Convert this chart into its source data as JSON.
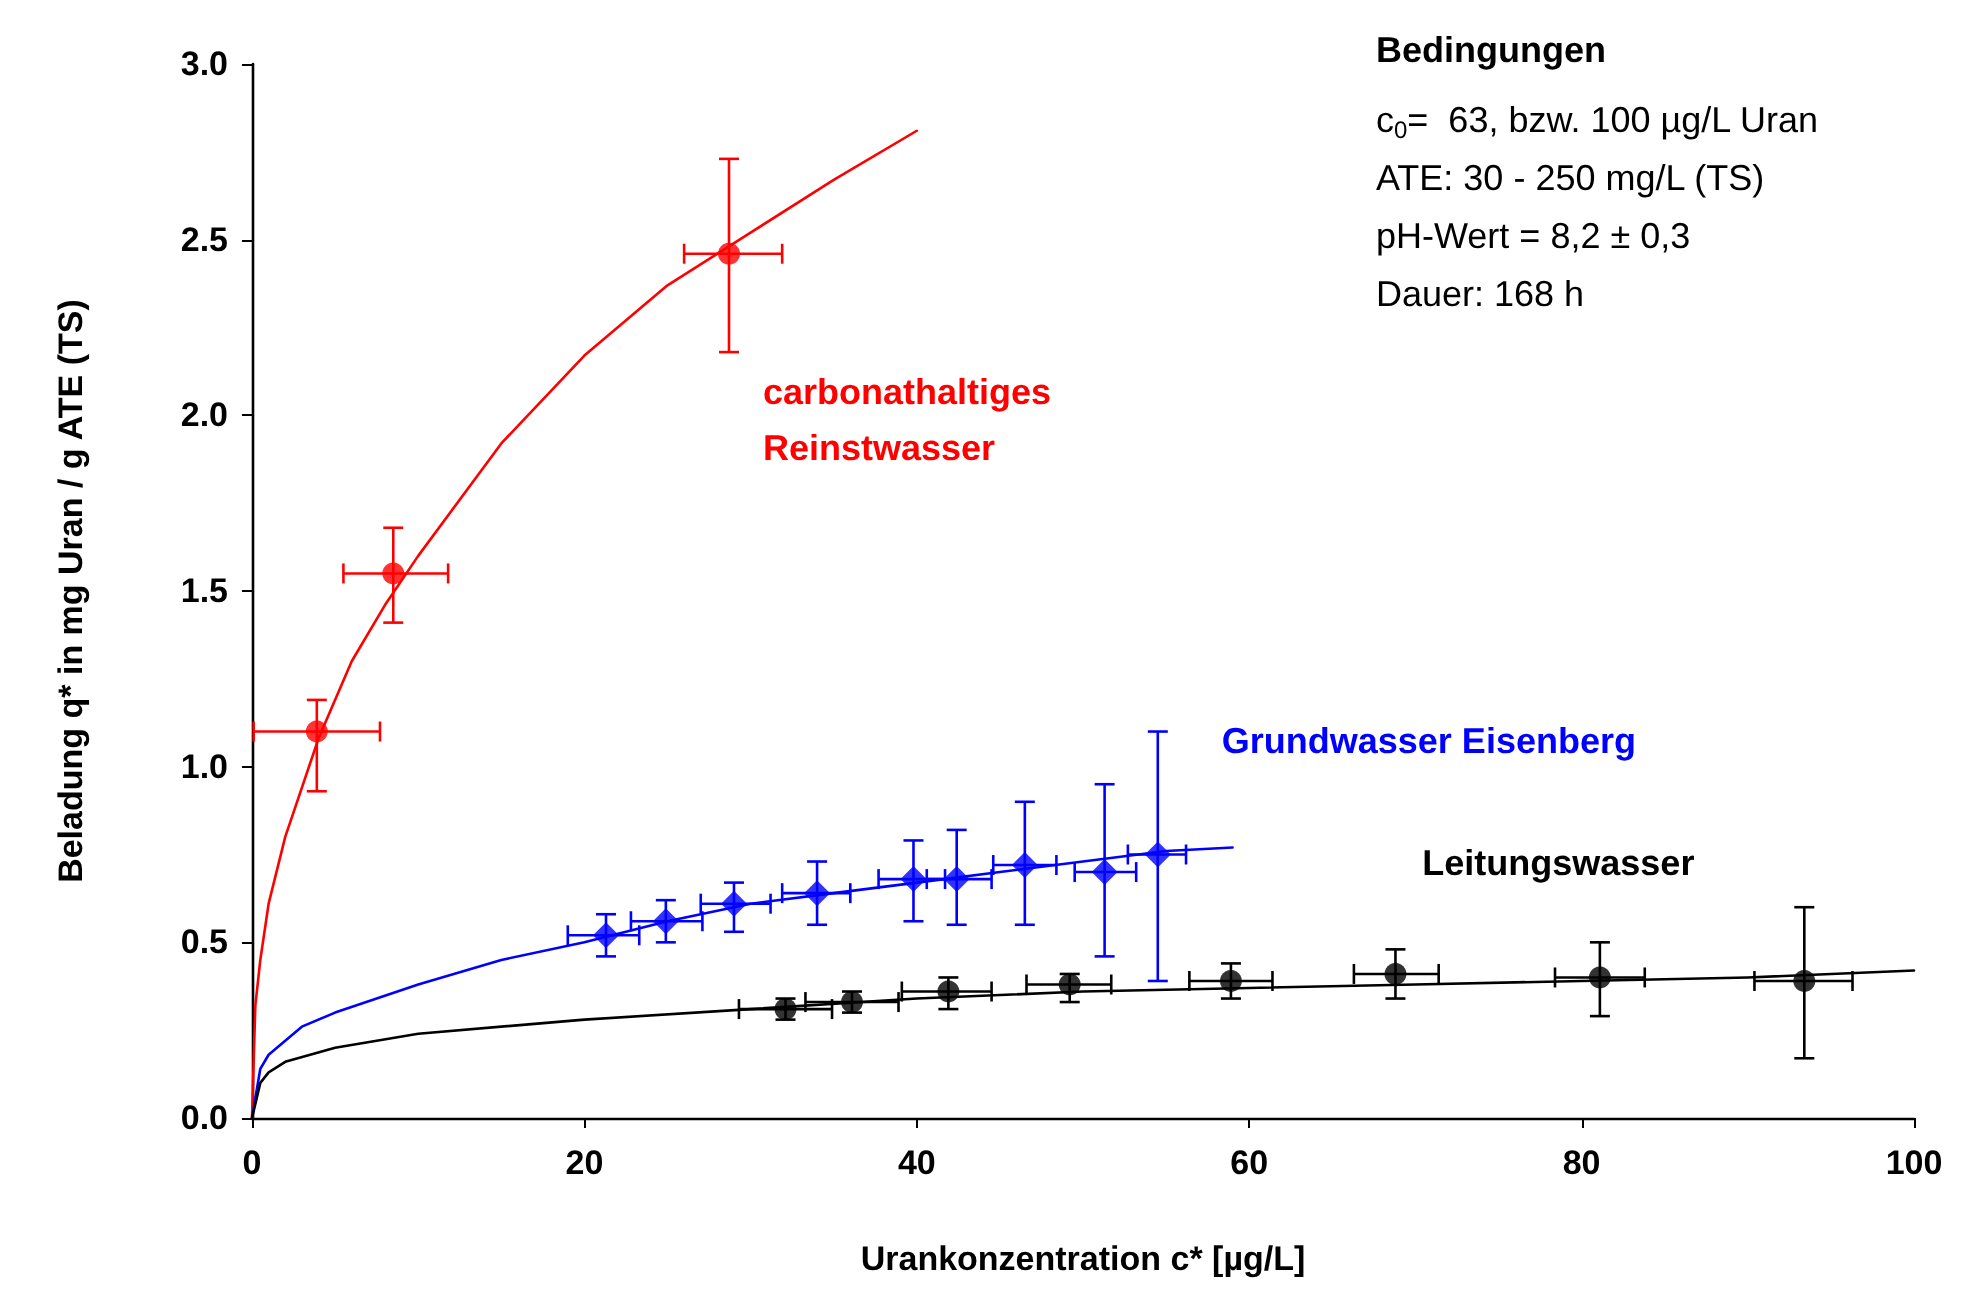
{
  "chart_data": {
    "type": "scatter",
    "xlabel": "Urankonzentration c* [µg/L]",
    "ylabel": "Beladung q* in mg Uran / g ATE (TS)",
    "xlim": [
      0,
      100
    ],
    "xticks": [
      0,
      20,
      40,
      60,
      80,
      100
    ],
    "ylim": [
      0,
      3
    ],
    "yticks": [
      {
        "value": 0,
        "label": "0.0"
      },
      {
        "value": 0.5,
        "label": "0.5"
      },
      {
        "value": 1,
        "label": "1.0"
      },
      {
        "value": 1.5,
        "label": "1.5"
      },
      {
        "value": 2,
        "label": "2.0"
      },
      {
        "value": 2.5,
        "label": "2.5"
      },
      {
        "value": 3,
        "label": "3.0"
      }
    ],
    "grid": false,
    "legend": false,
    "annotations": [
      "Bedingungen",
      "c$_{0}$=  63, bzw. 100 µg/L Uran",
      "ATE: 30 - 250 mg/L (TS)",
      "pH-Wert = 8,2 ± 0,3",
      "Dauer: 168 h"
    ],
    "series": [
      {
        "type": "line",
        "color": "#ff0000",
        "marker": "none",
        "x": [
          0,
          0.2,
          0.5,
          1,
          2,
          4,
          6,
          8,
          10,
          15,
          20,
          25,
          30,
          35,
          40
        ],
        "values": [
          0,
          0.32,
          0.45,
          0.61,
          0.8,
          1.08,
          1.3,
          1.46,
          1.6,
          1.92,
          2.17,
          2.37,
          2.52,
          2.67,
          2.81
        ]
      },
      {
        "type": "line",
        "color": "#0000ff",
        "marker": "none",
        "x": [
          0,
          0.5,
          1,
          3,
          5,
          10,
          15,
          20,
          25,
          30,
          35,
          40,
          45,
          50,
          55,
          59
        ],
        "values": [
          0,
          0.14,
          0.18,
          0.26,
          0.3,
          0.38,
          0.45,
          0.5,
          0.56,
          0.61,
          0.64,
          0.67,
          0.7,
          0.73,
          0.76,
          0.77
        ]
      },
      {
        "type": "line",
        "color": "#000000",
        "marker": "none",
        "x": [
          0,
          0.5,
          1,
          2,
          5,
          10,
          20,
          30,
          40,
          50,
          60,
          70,
          80,
          90,
          100
        ],
        "values": [
          0,
          0.1,
          0.13,
          0.16,
          0.2,
          0.24,
          0.28,
          0.31,
          0.34,
          0.36,
          0.37,
          0.38,
          0.39,
          0.4,
          0.42
        ]
      },
      {
        "name": "carbonathaltiges\nReinstwasser",
        "color": "#ff0000",
        "marker": "circle",
        "x": [
          3.9,
          8.5,
          28.7
        ],
        "values": [
          1.1,
          1.55,
          2.46
        ],
        "errors": [
          [
            0.93,
            1.19
          ],
          [
            1.41,
            1.68
          ],
          [
            2.18,
            2.73
          ]
        ],
        "xerrors": [
          [
            0.1,
            7.7
          ],
          [
            5.5,
            11.8
          ],
          [
            26,
            31.9
          ]
        ]
      },
      {
        "name": "Grundwasser Eisenberg",
        "color": "#0000ff",
        "marker": "diamond",
        "x": [
          21.3,
          24.9,
          29,
          34,
          39.8,
          42.4,
          46.5,
          51.3,
          54.5
        ],
        "values": [
          0.52,
          0.56,
          0.61,
          0.64,
          0.68,
          0.68,
          0.72,
          0.7,
          0.75
        ],
        "errors": [
          [
            0.46,
            0.58
          ],
          [
            0.5,
            0.62
          ],
          [
            0.53,
            0.67
          ],
          [
            0.55,
            0.73
          ],
          [
            0.56,
            0.79
          ],
          [
            0.55,
            0.82
          ],
          [
            0.55,
            0.9
          ],
          [
            0.46,
            0.95
          ],
          [
            0.39,
            1.1
          ]
        ],
        "xerrors": [
          [
            19,
            23.3
          ],
          [
            22.8,
            27.1
          ],
          [
            27,
            31.2
          ],
          [
            31.9,
            36
          ],
          [
            37.7,
            41.7
          ],
          [
            40.6,
            44.5
          ],
          [
            44.6,
            48.4
          ],
          [
            49.5,
            53.2
          ],
          [
            52.7,
            56.2
          ]
        ]
      },
      {
        "name": "Leitungswasser",
        "color": "#000000",
        "marker": "circle",
        "x": [
          32.1,
          36.1,
          41.9,
          49.2,
          58.9,
          68.8,
          81.1,
          93.4
        ],
        "values": [
          0.31,
          0.33,
          0.36,
          0.38,
          0.39,
          0.41,
          0.4,
          0.39
        ],
        "errors": [
          [
            0.28,
            0.34
          ],
          [
            0.3,
            0.36
          ],
          [
            0.31,
            0.4
          ],
          [
            0.33,
            0.41
          ],
          [
            0.34,
            0.44
          ],
          [
            0.34,
            0.48
          ],
          [
            0.29,
            0.5
          ],
          [
            0.17,
            0.6
          ]
        ],
        "xerrors": [
          [
            29.3,
            34.9
          ],
          [
            33.3,
            38.9
          ],
          [
            39.1,
            44.5
          ],
          [
            46.6,
            51.7
          ],
          [
            56.4,
            61.4
          ],
          [
            66.3,
            71.4
          ],
          [
            78.4,
            83.8
          ],
          [
            90.4,
            96.3
          ]
        ]
      }
    ]
  }
}
